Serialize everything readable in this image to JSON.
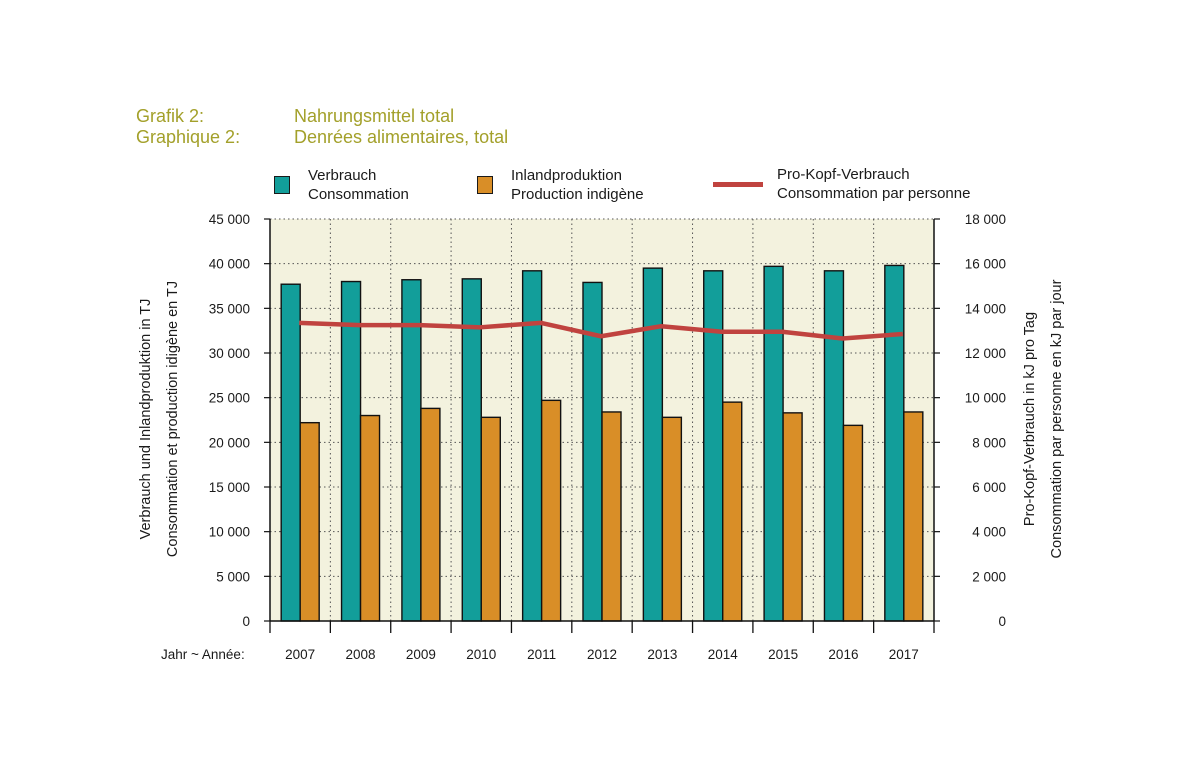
{
  "title": {
    "line1_key": "Grafik 2:",
    "line1_text": "Nahrungsmittel total",
    "line2_key": "Graphique 2:",
    "line2_text": "Denrées alimentaires, total"
  },
  "legend": [
    {
      "line1": "Verbrauch",
      "line2": "Consommation"
    },
    {
      "line1": "Inlandproduktion",
      "line2": "Production indigène"
    },
    {
      "line1": "Pro-Kopf-Verbrauch",
      "line2": "Consommation par personne"
    }
  ],
  "colors": {
    "consumption": "#129e9a",
    "production": "#d98e27",
    "per_capita": "#c0433f",
    "plot_bg": "#f3f2de",
    "title": "#a3a02a"
  },
  "axes": {
    "left_label_1": "Verbrauch und Inlandproduktion in TJ",
    "left_label_2": "Consommation et production idigène en TJ",
    "right_label_1": "Pro-Kopf-Verbrauch in kJ pro Tag",
    "right_label_2": "Consommation par personne en kJ par jour",
    "x_label": "Jahr ~ Année:"
  },
  "chart_data": {
    "type": "bar",
    "categories": [
      "2007",
      "2008",
      "2009",
      "2010",
      "2011",
      "2012",
      "2013",
      "2014",
      "2015",
      "2016",
      "2017"
    ],
    "series": [
      {
        "name": "Verbrauch / Consommation",
        "axis": "left",
        "type": "bar",
        "values": [
          37700,
          38000,
          38200,
          38300,
          39200,
          37900,
          39500,
          39200,
          39700,
          39200,
          39800
        ]
      },
      {
        "name": "Inlandproduktion / Production indigène",
        "axis": "left",
        "type": "bar",
        "values": [
          22200,
          23000,
          23800,
          22800,
          24700,
          23400,
          22800,
          24500,
          23300,
          21900,
          23400
        ]
      },
      {
        "name": "Pro-Kopf-Verbrauch / Consommation par personne",
        "axis": "right",
        "type": "line",
        "values": [
          13350,
          13250,
          13250,
          13150,
          13350,
          12750,
          13200,
          12950,
          12950,
          12650,
          12850
        ]
      }
    ],
    "ylim_left": [
      0,
      45000
    ],
    "ylim_right": [
      0,
      18000
    ],
    "yticks_left": [
      "0",
      "5 000",
      "10 000",
      "15 000",
      "20 000",
      "25 000",
      "30 000",
      "35 000",
      "40 000",
      "45 000"
    ],
    "yticks_right": [
      "0",
      "2 000",
      "4 000",
      "6 000",
      "8 000",
      "10 000",
      "12 000",
      "14 000",
      "16 000",
      "18 000"
    ],
    "grid": true
  }
}
